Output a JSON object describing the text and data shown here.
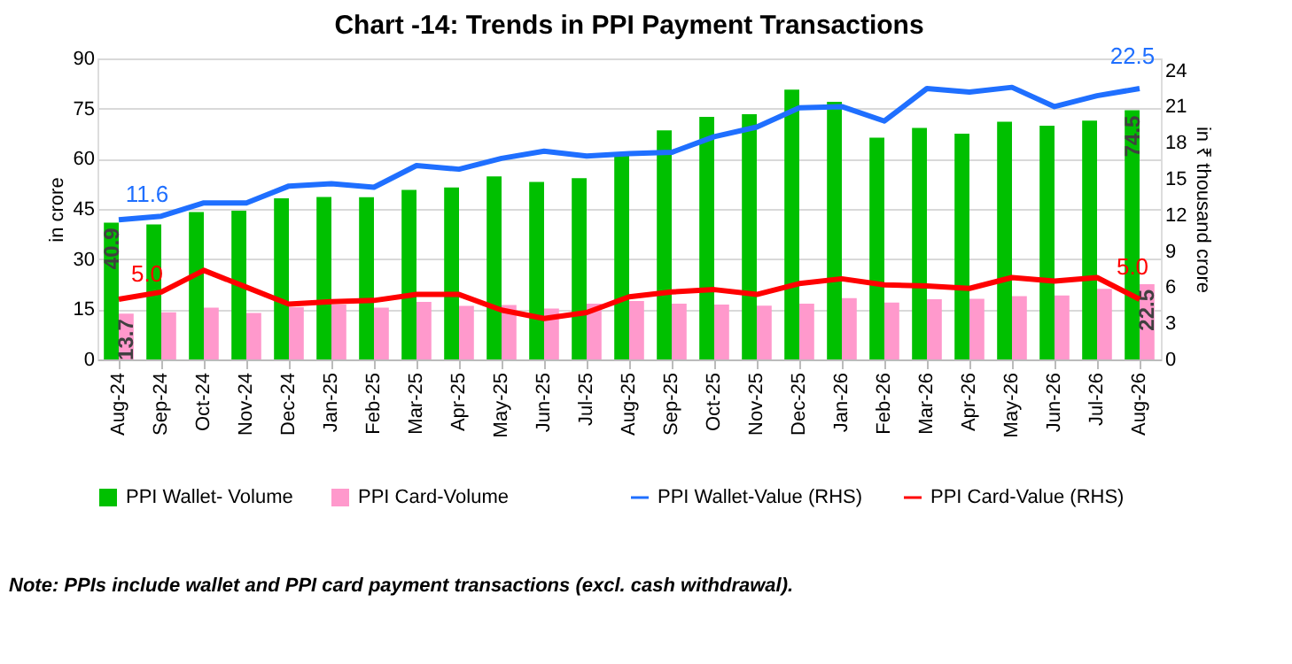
{
  "chart_data": {
    "type": "bar",
    "title": "Chart -14: Trends in PPI Payment Transactions",
    "categories": [
      "Aug-24",
      "Sep-24",
      "Oct-24",
      "Nov-24",
      "Dec-24",
      "Jan-25",
      "Feb-25",
      "Mar-25",
      "Apr-25",
      "May-25",
      "Jun-25",
      "Jul-25",
      "Aug-25",
      "Sep-25",
      "Oct-25",
      "Nov-25",
      "Dec-25",
      "Jan-26",
      "Feb-26",
      "Mar-26",
      "Apr-26",
      "May-26",
      "Jun-26",
      "Jul-26",
      "Aug-26"
    ],
    "ylabel": "in crore",
    "y2label": "in ₹ thousand crore",
    "ylim": [
      0,
      90
    ],
    "yticks": [
      0,
      15,
      30,
      45,
      60,
      75,
      90
    ],
    "y2lim": [
      0,
      25
    ],
    "y2ticks": [
      0,
      3,
      6,
      9,
      12,
      15,
      18,
      21,
      24
    ],
    "grid": "y",
    "legend": "bottom",
    "series": [
      {
        "name": "PPI Wallet- Volume",
        "color": "#00c000",
        "values": [
          40.9,
          40.4,
          44.1,
          44.5,
          48.2,
          48.6,
          48.5,
          50.7,
          51.4,
          54.7,
          53.1,
          54.2,
          60.9,
          68.5,
          72.5,
          73.3,
          80.7,
          77.0,
          66.3,
          69.2,
          67.5,
          71.1,
          69.9,
          71.4,
          74.5
        ],
        "value_labels": [
          "40.9",
          null,
          null,
          null,
          null,
          null,
          null,
          null,
          null,
          null,
          null,
          null,
          null,
          null,
          null,
          null,
          null,
          null,
          null,
          null,
          null,
          null,
          null,
          null,
          "74.5"
        ]
      },
      {
        "name": "PPI Card-Volume",
        "color": "#ff99cc",
        "values": [
          13.7,
          14.1,
          15.5,
          13.9,
          15.6,
          16.4,
          15.5,
          17.2,
          16.0,
          16.3,
          15.2,
          16.7,
          17.5,
          16.7,
          16.4,
          16.1,
          16.7,
          18.3,
          17.0,
          18.0,
          18.1,
          18.9,
          19.1,
          21.1,
          22.5
        ],
        "value_labels": [
          "13.7",
          null,
          null,
          null,
          null,
          null,
          null,
          null,
          null,
          null,
          null,
          null,
          null,
          null,
          null,
          null,
          null,
          null,
          null,
          null,
          null,
          null,
          null,
          null,
          "22.5"
        ]
      },
      {
        "name": "PPI Wallet-Value (RHS)",
        "type": "line",
        "axis": "y2",
        "color": "#1f6fff",
        "values": [
          11.6,
          11.9,
          13.0,
          13.0,
          14.4,
          14.6,
          14.3,
          16.1,
          15.8,
          16.7,
          17.3,
          16.9,
          17.1,
          17.2,
          18.5,
          19.3,
          20.9,
          21.0,
          19.8,
          22.5,
          22.2,
          22.6,
          21.0,
          21.9,
          22.5
        ],
        "value_labels": [
          "11.6",
          null,
          null,
          null,
          null,
          null,
          null,
          null,
          null,
          null,
          null,
          null,
          null,
          null,
          null,
          null,
          null,
          null,
          null,
          null,
          null,
          null,
          null,
          null,
          "22.5"
        ]
      },
      {
        "name": "PPI Card-Value (RHS)",
        "type": "line",
        "axis": "y2",
        "color": "#ff0000",
        "values": [
          5.0,
          5.6,
          7.4,
          6.0,
          4.6,
          4.8,
          4.9,
          5.4,
          5.4,
          4.1,
          3.4,
          3.9,
          5.2,
          5.6,
          5.8,
          5.4,
          6.3,
          6.7,
          6.2,
          6.1,
          5.9,
          6.8,
          6.5,
          6.8,
          5.0
        ],
        "value_labels": [
          "5.0",
          null,
          null,
          null,
          null,
          null,
          null,
          null,
          null,
          null,
          null,
          null,
          null,
          null,
          null,
          null,
          null,
          null,
          null,
          null,
          null,
          null,
          null,
          null,
          "5.0"
        ]
      }
    ],
    "annotations": [
      "Note: PPIs include wallet and PPI card payment transactions (excl. cash withdrawal)."
    ]
  }
}
